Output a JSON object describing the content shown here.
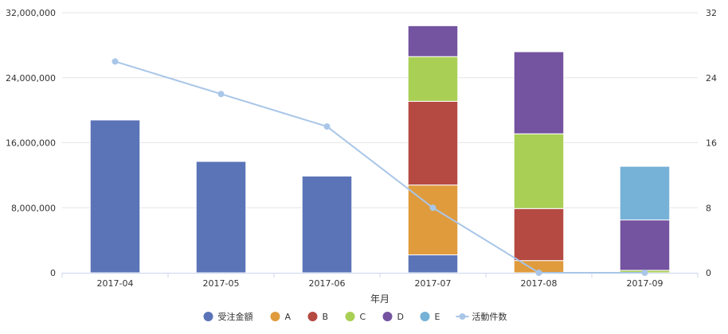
{
  "chart_data": {
    "type": "bar",
    "stacked": true,
    "categories": [
      "2017-04",
      "2017-05",
      "2017-06",
      "2017-07",
      "2017-08",
      "2017-09"
    ],
    "xlabel": "年月",
    "ylabel": "",
    "y2label": "",
    "ylim": [
      0,
      32000000
    ],
    "y2lim": [
      0,
      32
    ],
    "y_ticks": [
      "0",
      "8,000,000",
      "16,000,000",
      "24,000,000",
      "32,000,000"
    ],
    "y2_ticks": [
      "0",
      "8",
      "16",
      "24",
      "32"
    ],
    "grid": true,
    "legend_position": "bottom",
    "series": [
      {
        "name": "受注金額",
        "type": "bar",
        "axis": "left",
        "color": "#5B74B8",
        "values": [
          18800000,
          13700000,
          11900000,
          2200000,
          0,
          0
        ]
      },
      {
        "name": "A",
        "type": "bar",
        "axis": "left",
        "color": "#E09B3D",
        "values": [
          0,
          0,
          0,
          8600000,
          1500000,
          0
        ]
      },
      {
        "name": "B",
        "type": "bar",
        "axis": "left",
        "color": "#B54A42",
        "values": [
          0,
          0,
          0,
          10300000,
          6400000,
          0
        ]
      },
      {
        "name": "C",
        "type": "bar",
        "axis": "left",
        "color": "#A9CF55",
        "values": [
          0,
          0,
          0,
          5500000,
          9200000,
          300000
        ]
      },
      {
        "name": "D",
        "type": "bar",
        "axis": "left",
        "color": "#7453A0",
        "values": [
          0,
          0,
          0,
          3800000,
          10100000,
          6200000
        ]
      },
      {
        "name": "E",
        "type": "bar",
        "axis": "left",
        "color": "#76B1D8",
        "values": [
          0,
          0,
          0,
          0,
          0,
          6600000
        ]
      },
      {
        "name": "活動件数",
        "type": "line",
        "axis": "right",
        "color": "#A9C6E8",
        "values": [
          26,
          22,
          18,
          8,
          0,
          0
        ]
      }
    ]
  }
}
